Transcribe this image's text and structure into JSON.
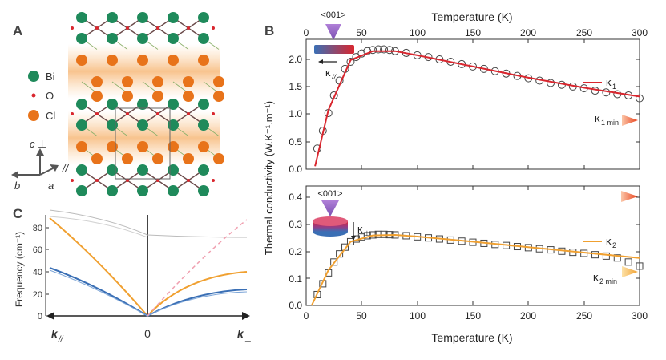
{
  "panels": {
    "a": {
      "letter": "A",
      "legend": [
        {
          "label": "Bi",
          "color": "#1f8a5b"
        },
        {
          "label": "O",
          "color": "#d9262e"
        },
        {
          "label": "Cl",
          "color": "#e8731a"
        }
      ],
      "axes": {
        "c": "c",
        "b": "b",
        "a": "a",
        "perp": "⊥",
        "par": "//"
      }
    },
    "b": {
      "letter": "B",
      "top_axis_label": "Temperature (K)",
      "bottom_axis_label": "Temperature (K)",
      "y_axis_label": "Thermal conductivity (W.K⁻¹.m⁻¹)",
      "x_ticks": [
        "0",
        "50",
        "100",
        "150",
        "200",
        "250",
        "300"
      ],
      "upper_y_ticks": [
        "0.0",
        "0.5",
        "1.0",
        "1.5",
        "2.0"
      ],
      "lower_y_ticks": [
        "0.0",
        "0.1",
        "0.2",
        "0.3",
        "0.4"
      ],
      "direction": "<001>",
      "upper": {
        "kappa": "κ",
        "sub": "//",
        "series": "κ",
        "series_sub": "1",
        "min_label": "κ",
        "min_sub": "1 min"
      },
      "lower": {
        "kappa": "κ",
        "sub": "⊥",
        "series": "κ",
        "series_sub": "2",
        "min_label": "κ",
        "min_sub": "2 min"
      }
    },
    "c": {
      "letter": "C",
      "y_axis_label": "Frequency (cm⁻¹)",
      "y_ticks": [
        "0",
        "20",
        "40",
        "60",
        "80"
      ],
      "center_label": "0",
      "left_label": "k",
      "left_sub": "//",
      "right_label": "k",
      "right_sub": "⊥"
    }
  },
  "colors": {
    "red": "#d9262e",
    "orange": "#f0a030",
    "blue": "#3a6fb5",
    "pink": "#f0a0b0",
    "grey": "#bbbbbb"
  },
  "chart_data": [
    {
      "type": "scatter",
      "title": "",
      "xlabel": "Temperature (K)",
      "ylabel": "Thermal conductivity (W.K⁻¹.m⁻¹)",
      "xlim": [
        0,
        300
      ],
      "ylim": [
        0,
        2.2
      ],
      "series": [
        {
          "name": "κ1",
          "x": [
            10,
            15,
            20,
            25,
            30,
            35,
            40,
            45,
            50,
            55,
            60,
            65,
            70,
            75,
            80,
            90,
            100,
            110,
            120,
            130,
            140,
            150,
            160,
            170,
            180,
            190,
            200,
            210,
            220,
            230,
            240,
            250,
            260,
            270,
            280,
            290,
            300
          ],
          "y": [
            0.35,
            0.65,
            0.95,
            1.25,
            1.5,
            1.7,
            1.82,
            1.9,
            1.96,
            2.0,
            2.02,
            2.03,
            2.03,
            2.02,
            2.0,
            1.97,
            1.93,
            1.9,
            1.86,
            1.82,
            1.78,
            1.74,
            1.7,
            1.66,
            1.62,
            1.58,
            1.54,
            1.5,
            1.46,
            1.43,
            1.4,
            1.37,
            1.33,
            1.3,
            1.27,
            1.25,
            1.2
          ]
        },
        {
          "name": "κ1",
          "x": [
            8,
            20,
            40,
            60,
            80,
            100,
            150,
            200,
            250,
            300
          ],
          "y": [
            0.05,
            1.0,
            1.85,
            2.0,
            2.0,
            1.93,
            1.74,
            1.55,
            1.38,
            1.23
          ]
        }
      ]
    },
    {
      "type": "scatter",
      "title": "",
      "xlabel": "Temperature (K)",
      "ylabel": "Thermal conductivity (W.K⁻¹.m⁻¹)",
      "xlim": [
        0,
        300
      ],
      "ylim": [
        0,
        0.44
      ],
      "series": [
        {
          "name": "κ2",
          "x": [
            10,
            15,
            20,
            25,
            30,
            35,
            40,
            45,
            50,
            55,
            60,
            65,
            70,
            75,
            80,
            90,
            100,
            110,
            120,
            130,
            140,
            150,
            160,
            170,
            180,
            190,
            200,
            210,
            220,
            230,
            240,
            250,
            260,
            270,
            280,
            290,
            300
          ],
          "y": [
            0.04,
            0.08,
            0.12,
            0.16,
            0.19,
            0.215,
            0.235,
            0.245,
            0.252,
            0.257,
            0.26,
            0.262,
            0.262,
            0.261,
            0.26,
            0.257,
            0.253,
            0.249,
            0.245,
            0.241,
            0.237,
            0.233,
            0.229,
            0.225,
            0.221,
            0.217,
            0.213,
            0.209,
            0.205,
            0.2,
            0.196,
            0.192,
            0.187,
            0.182,
            0.175,
            0.16,
            0.145
          ]
        },
        {
          "name": "κ2",
          "x": [
            5,
            20,
            40,
            60,
            80,
            100,
            150,
            200,
            250,
            300
          ],
          "y": [
            0.0,
            0.13,
            0.235,
            0.258,
            0.26,
            0.254,
            0.235,
            0.215,
            0.195,
            0.175
          ]
        }
      ]
    }
  ]
}
